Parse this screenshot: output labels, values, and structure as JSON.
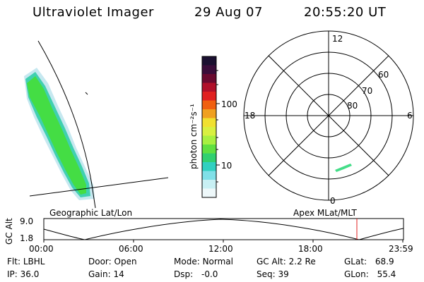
{
  "header": {
    "instrument": "Ultraviolet Imager",
    "date": "29 Aug 07",
    "time": "20:55:20 UT"
  },
  "left_panel": {
    "projection_label": "Geographic Lat/Lon",
    "aurora_color": "#44dd44"
  },
  "colorbar": {
    "unit_label": "photon cm⁻²s⁻¹",
    "tick_labels": [
      "100",
      "10"
    ],
    "colors_top_to_bottom": [
      "#1a1030",
      "#3a0d3a",
      "#6a0a30",
      "#b0102a",
      "#e02020",
      "#f06010",
      "#f0a020",
      "#f0e030",
      "#d8f040",
      "#a8f040",
      "#60e040",
      "#30d070",
      "#30d0c0",
      "#80e0e8",
      "#c8f0f4",
      "#eef8fa"
    ]
  },
  "polar_plot": {
    "projection_label": "Apex MLat/MLT",
    "mlt_labels": {
      "top": "12",
      "left": "18",
      "right": "6",
      "bottom": "0"
    },
    "lat_labels": [
      "60",
      "70",
      "80"
    ],
    "aurora_color": "#44dd88"
  },
  "timeline": {
    "axis_label": "GC Alt",
    "y_ticks": [
      "9.0",
      "1.8"
    ],
    "x_ticks": [
      "00:00",
      "06:00",
      "12:00",
      "18:00",
      "23:59"
    ],
    "marker_color": "#e02020"
  },
  "info": {
    "flt": {
      "label": "Flt:",
      "value": "LBHL"
    },
    "door": {
      "label": "Door:",
      "value": "Open"
    },
    "mode": {
      "label": "Mode:",
      "value": "Normal"
    },
    "gc_alt": {
      "label": "GC Alt:",
      "value": "2.2 Re"
    },
    "glat": {
      "label": "GLat:",
      "value": "68.9"
    },
    "ip": {
      "label": "IP:",
      "value": "36.0"
    },
    "gain": {
      "label": "Gain:",
      "value": "14"
    },
    "dsp": {
      "label": "Dsp:",
      "value": "-0.0"
    },
    "seq": {
      "label": "Seq:",
      "value": "39"
    },
    "glon": {
      "label": "GLon:",
      "value": "55.4"
    }
  }
}
